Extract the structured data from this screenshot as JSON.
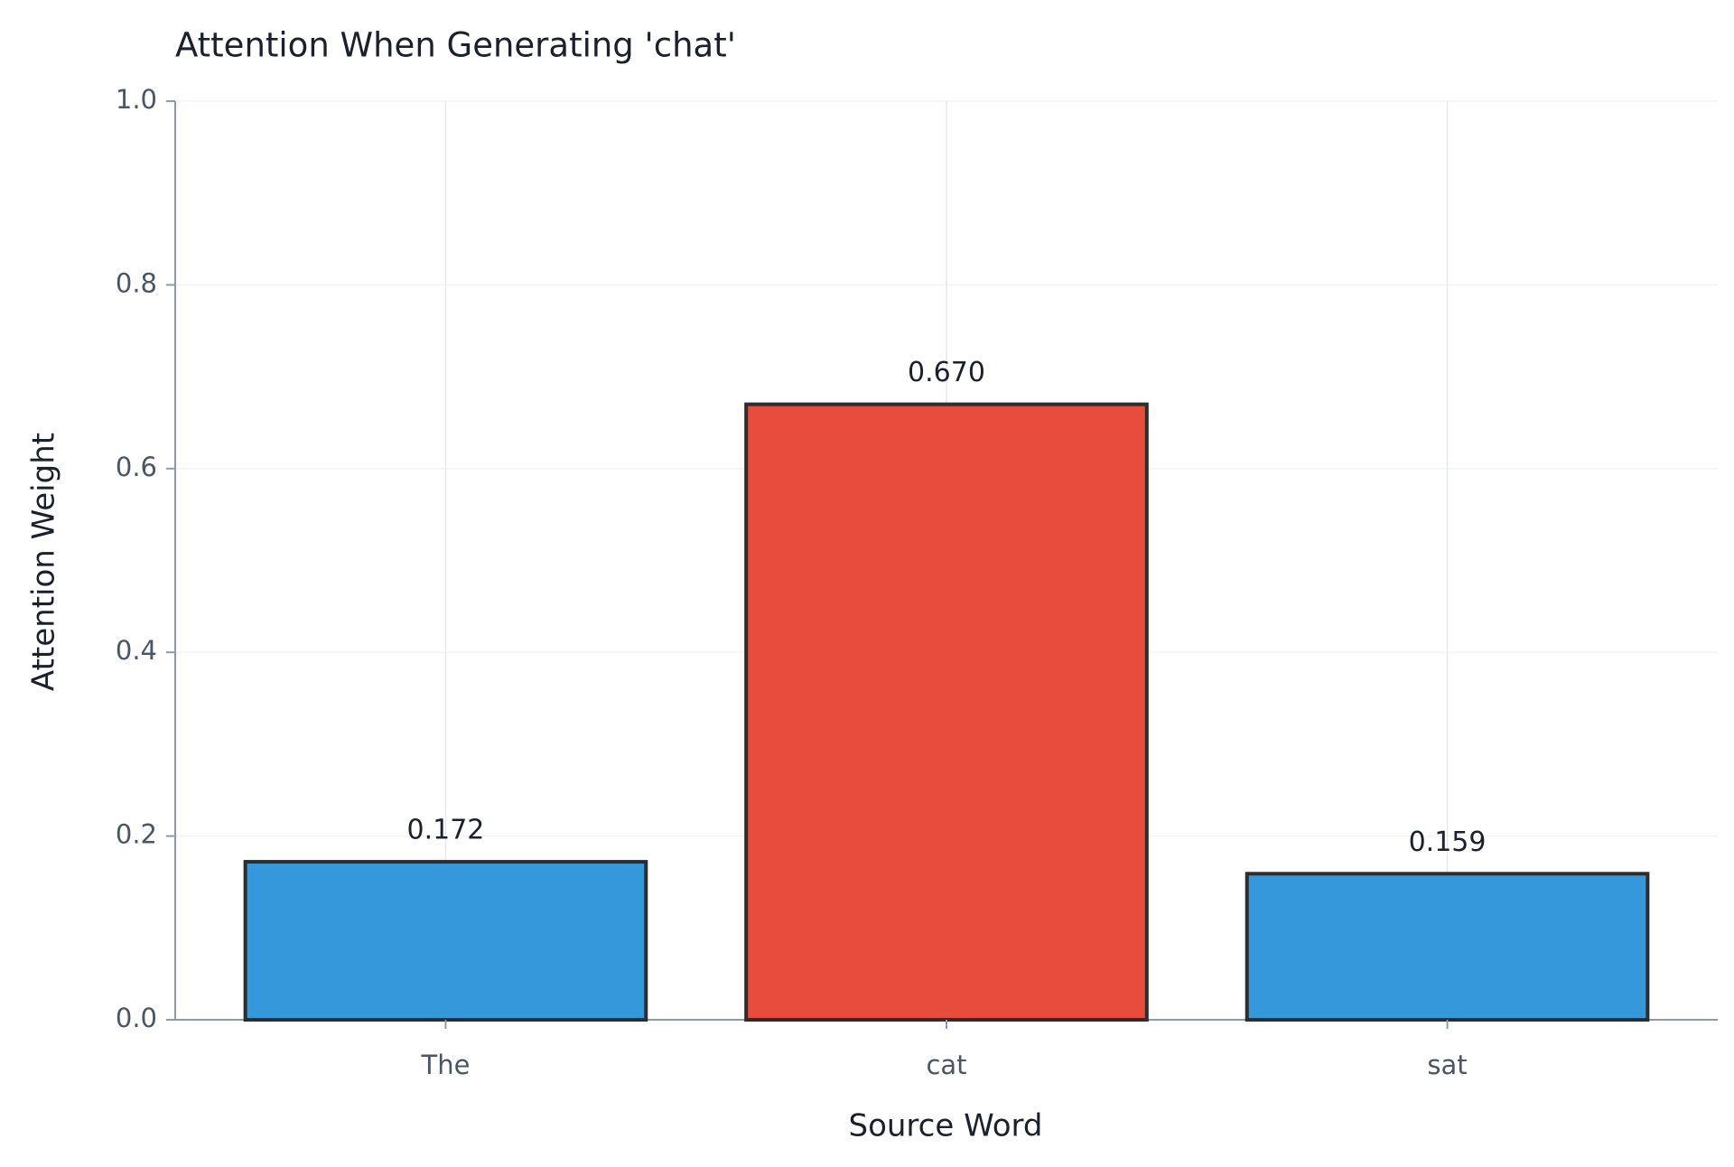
{
  "chart_data": {
    "type": "bar",
    "title": "Attention When Generating 'chat'",
    "x_label": "Source Word",
    "y_label": "Attention Weight",
    "categories": [
      "The",
      "cat",
      "sat"
    ],
    "values": [
      0.172,
      0.67,
      0.159
    ],
    "value_labels": [
      "0.172",
      "0.670",
      "0.159"
    ],
    "colors": [
      "#3498db",
      "#e74c3c",
      "#3498db"
    ],
    "edge_color": "#2d2d2d",
    "ylim": [
      0,
      1
    ],
    "yticks": [
      {
        "value": 0,
        "label": "0.0"
      },
      0.2,
      0.4,
      0.6,
      0.8,
      {
        "value": 1,
        "label": "1.0"
      }
    ],
    "grid": true
  }
}
